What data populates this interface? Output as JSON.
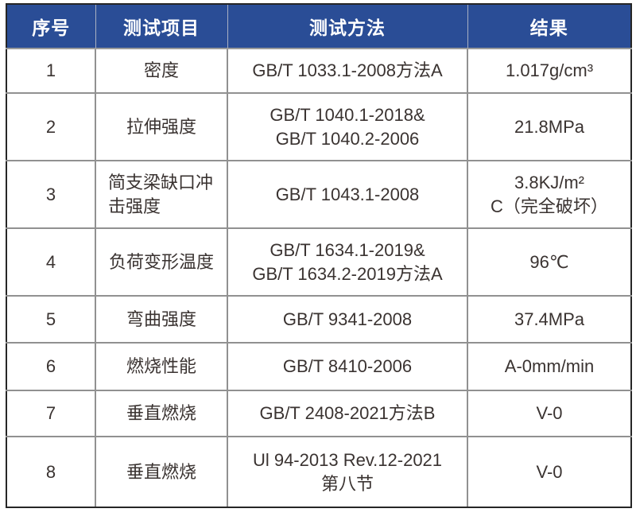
{
  "colors": {
    "header_bg": "#2a4d96",
    "header_text": "#ffffff",
    "body_text": "#3a3331",
    "grid_line": "#919191",
    "outer_border": "#262626"
  },
  "table": {
    "headers": [
      "序号",
      "测试项目",
      "测试方法",
      "结果"
    ],
    "rows": [
      {
        "no": "1",
        "item_lines": [
          "密度"
        ],
        "method_lines": [
          "GB/T 1033.1-2008方法A"
        ],
        "result_lines": [
          "1.017g/cm³"
        ]
      },
      {
        "no": "2",
        "item_lines": [
          "拉伸强度"
        ],
        "method_lines": [
          "GB/T 1040.1-2018&",
          "GB/T 1040.2-2006"
        ],
        "result_lines": [
          "21.8MPa"
        ]
      },
      {
        "no": "3",
        "item_lines": [
          "简支梁缺口冲",
          "击强度"
        ],
        "method_lines": [
          "GB/T 1043.1-2008"
        ],
        "result_lines": [
          "3.8KJ/m²",
          "C（完全破坏）"
        ]
      },
      {
        "no": "4",
        "item_lines": [
          "负荷变形温度"
        ],
        "method_lines": [
          "GB/T 1634.1-2019&",
          "GB/T 1634.2-2019方法A"
        ],
        "result_lines": [
          "96℃"
        ]
      },
      {
        "no": "5",
        "item_lines": [
          "弯曲强度"
        ],
        "method_lines": [
          "GB/T 9341-2008"
        ],
        "result_lines": [
          "37.4MPa"
        ]
      },
      {
        "no": "6",
        "item_lines": [
          "燃烧性能"
        ],
        "method_lines": [
          "GB/T 8410-2006"
        ],
        "result_lines": [
          "A-0mm/min"
        ]
      },
      {
        "no": "7",
        "item_lines": [
          "垂直燃烧"
        ],
        "method_lines": [
          "GB/T 2408-2021方法B"
        ],
        "result_lines": [
          "V-0"
        ]
      },
      {
        "no": "8",
        "item_lines": [
          "垂直燃烧"
        ],
        "method_lines": [
          "Ul 94-2013 Rev.12-2021",
          "第八节"
        ],
        "result_lines": [
          "V-0"
        ]
      }
    ]
  }
}
